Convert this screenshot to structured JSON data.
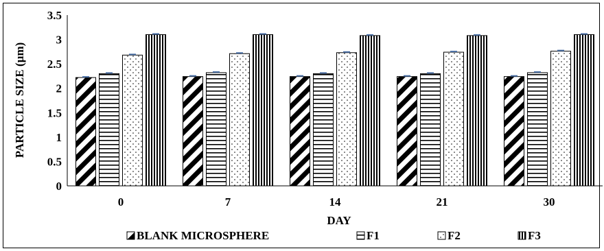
{
  "chart_data": {
    "type": "bar",
    "title": "",
    "xlabel": "DAY",
    "ylabel": "PARTICLE SIZE (µm)",
    "ylim": [
      0,
      3.5
    ],
    "yticks": [
      "0",
      "0.5",
      "1",
      "1.5",
      "2",
      "2.5",
      "3",
      "3.5"
    ],
    "categories": [
      "0",
      "7",
      "14",
      "21",
      "30"
    ],
    "grid": false,
    "legend_position": "bottom",
    "series": [
      {
        "name": "BLANK MICROSPHERE",
        "pattern": "diagonal",
        "values": [
          2.22,
          2.24,
          2.24,
          2.24,
          2.24
        ]
      },
      {
        "name": "F1",
        "pattern": "horizontal",
        "values": [
          2.3,
          2.32,
          2.3,
          2.3,
          2.32
        ]
      },
      {
        "name": "F2",
        "pattern": "dots",
        "values": [
          2.68,
          2.71,
          2.73,
          2.74,
          2.76
        ]
      },
      {
        "name": "F3",
        "pattern": "vertical",
        "values": [
          3.1,
          3.1,
          3.08,
          3.08,
          3.1
        ]
      }
    ],
    "colors": {
      "bar_stroke": "#000000",
      "error_bar": "#4a6fa5"
    }
  }
}
